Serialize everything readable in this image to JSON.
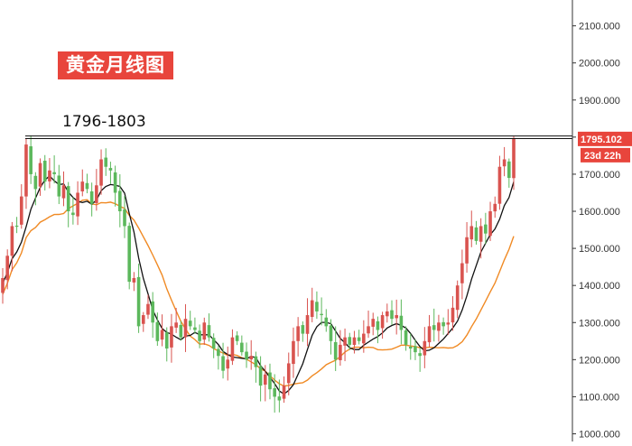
{
  "title": "黄金月线图",
  "annotation": {
    "label": "1796-1803",
    "low": 1796,
    "high": 1803
  },
  "price_tag": {
    "value": "1795.102",
    "countdown": "23d 22h",
    "color": "#e8453c"
  },
  "colors": {
    "up": "#d9534f",
    "down": "#5cb85c",
    "ma_fast": "#111111",
    "ma_slow": "#f08a24"
  },
  "chart_data": {
    "type": "candlestick",
    "title": "黄金月线图",
    "y_ticks": [
      "1000.000",
      "1100.000",
      "1200.000",
      "1300.000",
      "1400.000",
      "1500.000",
      "1600.000",
      "1700.000",
      "1800.000",
      "1900.000",
      "2000.000",
      "2100.000"
    ],
    "ylim": [
      995,
      2200
    ],
    "grid": false,
    "horizontal_lines": [
      1796,
      1803
    ],
    "last_price": 1795.102,
    "closes": [
      1420,
      1480,
      1560,
      1560,
      1640,
      1780,
      1700,
      1660,
      1730,
      1680,
      1710,
      1700,
      1640,
      1670,
      1600,
      1590,
      1650,
      1680,
      1660,
      1620,
      1670,
      1740,
      1720,
      1710,
      1650,
      1600,
      1560,
      1410,
      1420,
      1290,
      1320,
      1350,
      1300,
      1250,
      1280,
      1230,
      1290,
      1300,
      1260,
      1310,
      1290,
      1280,
      1250,
      1300,
      1260,
      1230,
      1210,
      1170,
      1200,
      1260,
      1250,
      1220,
      1200,
      1210,
      1180,
      1130,
      1160,
      1120,
      1100,
      1090,
      1130,
      1190,
      1250,
      1290,
      1270,
      1320,
      1360,
      1330,
      1320,
      1290,
      1250,
      1200,
      1240,
      1260,
      1240,
      1260,
      1250,
      1270,
      1290,
      1310,
      1280,
      1320,
      1330,
      1310,
      1320,
      1280,
      1240,
      1230,
      1220,
      1210,
      1250,
      1290,
      1280,
      1300,
      1290,
      1300,
      1340,
      1400,
      1460,
      1530,
      1560,
      1520,
      1560,
      1540,
      1600,
      1620,
      1720,
      1740,
      1690,
      1795
    ]
  }
}
